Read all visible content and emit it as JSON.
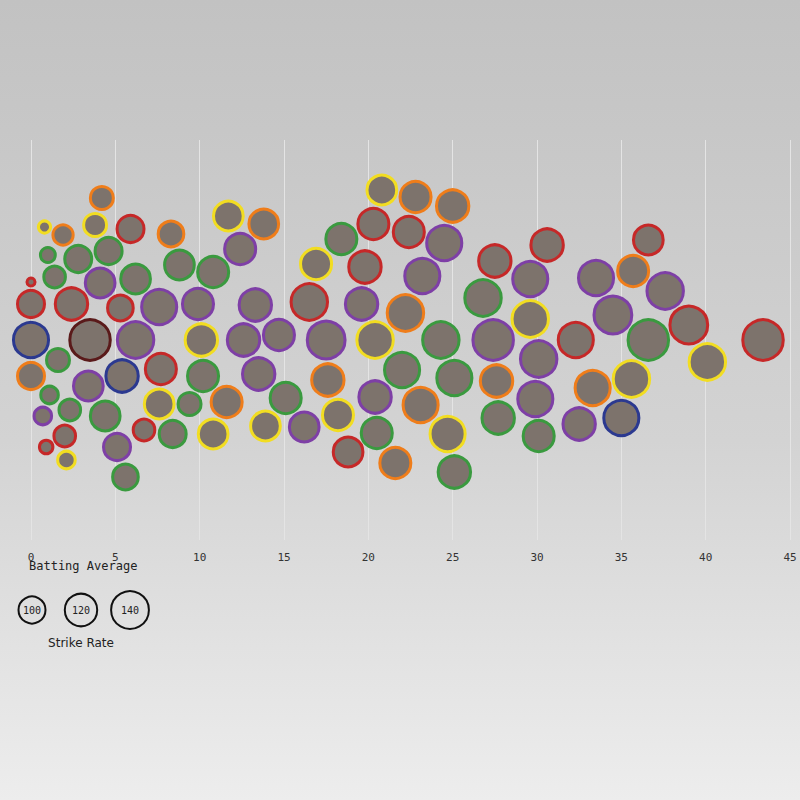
{
  "chart_data": {
    "type": "scatter",
    "x_label": "Batting Average",
    "size_label": "Strike Rate",
    "size_legend": [
      100,
      120,
      140
    ],
    "xlim": [
      0,
      45
    ],
    "xticks": [
      0,
      5,
      10,
      15,
      20,
      25,
      30,
      35,
      40,
      45
    ],
    "grid": true,
    "x": [
      0,
      0,
      0,
      0,
      0.8,
      0.9,
      1.0,
      1.1,
      0.7,
      1.9,
      2.8,
      2.3,
      1.6,
      2.1,
      1.4,
      2.0,
      3.5,
      2.4,
      3.4,
      3.8,
      4.1,
      4.2,
      4.4,
      4.6,
      5.3,
      5.1,
      5.4,
      5.6,
      5.9,
      6.2,
      6.2,
      6.7,
      7.6,
      7.6,
      7.7,
      8.3,
      8.4,
      8.8,
      9.4,
      9.9,
      10.1,
      10.2,
      10.8,
      10.8,
      11.6,
      11.7,
      12.6,
      12.4,
      13.3,
      13.5,
      13.9,
      13.8,
      14.7,
      15.1,
      16.5,
      16.9,
      16.2,
      17.6,
      17.5,
      18.2,
      18.4,
      18.8,
      19.6,
      20.4,
      20.4,
      19.8,
      20.5,
      20.3,
      20.8,
      21.6,
      22.0,
      22.4,
      22.2,
      22.8,
      23.2,
      23.1,
      24.3,
      24.5,
      24.7,
      25.1,
      25.1,
      25.0,
      26.8,
      27.6,
      27.4,
      27.7,
      27.5,
      29.9,
      29.6,
      29.6,
      30.1,
      30.6,
      30.1,
      32.3,
      32.5,
      33.3,
      33.5,
      34.5,
      35.0,
      35.6,
      35.7,
      36.6,
      36.6,
      37.6,
      39.0,
      40.1,
      43.4
    ],
    "sizes": [
      100,
      100,
      130,
      30,
      45,
      50,
      55,
      65,
      65,
      75,
      100,
      80,
      85,
      65,
      80,
      80,
      150,
      120,
      110,
      85,
      110,
      85,
      110,
      100,
      95,
      100,
      120,
      95,
      100,
      135,
      110,
      80,
      130,
      110,
      115,
      95,
      100,
      110,
      85,
      115,
      120,
      115,
      110,
      115,
      115,
      110,
      120,
      115,
      120,
      120,
      110,
      110,
      115,
      115,
      135,
      115,
      110,
      120,
      140,
      115,
      115,
      110,
      120,
      135,
      120,
      120,
      115,
      115,
      110,
      115,
      130,
      115,
      135,
      115,
      130,
      130,
      135,
      130,
      130,
      130,
      120,
      120,
      135,
      120,
      150,
      120,
      120,
      130,
      135,
      130,
      135,
      120,
      115,
      130,
      120,
      130,
      130,
      140,
      130,
      135,
      115,
      110,
      150,
      135,
      140,
      135,
      150
    ],
    "colors": [
      "#c62828",
      "#ef7d1a",
      "#2b3990",
      "#c62828",
      "#f2dd21",
      "#c62828",
      "#3a9a3f",
      "#3a9a3f",
      "#7e3fa6",
      "#ef7d1a",
      "#3a9a3f",
      "#3a9a3f",
      "#3a9a3f",
      "#f2dd21",
      "#3a9a3f",
      "#c62828",
      "#5a1a1a",
      "#c62828",
      "#7e3fa6",
      "#f2dd21",
      "#7e3fa6",
      "#ef7d1a",
      "#3a9a3f",
      "#3a9a3f",
      "#c62828",
      "#7e3fa6",
      "#2b3990",
      "#3a9a3f",
      "#c62828",
      "#7e3fa6",
      "#3a9a3f",
      "#c62828",
      "#7e3fa6",
      "#f2dd21",
      "#c62828",
      "#ef7d1a",
      "#3a9a3f",
      "#3a9a3f",
      "#3a9a3f",
      "#7e3fa6",
      "#f2dd21",
      "#3a9a3f",
      "#f2dd21",
      "#3a9a3f",
      "#ef7d1a",
      "#f2dd21",
      "#7e3fa6",
      "#7e3fa6",
      "#7e3fa6",
      "#7e3fa6",
      "#f2dd21",
      "#ef7d1a",
      "#7e3fa6",
      "#3a9a3f",
      "#c62828",
      "#f2dd21",
      "#7e3fa6",
      "#ef7d1a",
      "#7e3fa6",
      "#f2dd21",
      "#3a9a3f",
      "#c62828",
      "#7e3fa6",
      "#f2dd21",
      "#7e3fa6",
      "#c62828",
      "#3a9a3f",
      "#c62828",
      "#f2dd21",
      "#ef7d1a",
      "#3a9a3f",
      "#c62828",
      "#ef7d1a",
      "#ef7d1a",
      "#7e3fa6",
      "#ef7d1a",
      "#3a9a3f",
      "#7e3fa6",
      "#f2dd21",
      "#3a9a3f",
      "#3a9a3f",
      "#ef7d1a",
      "#3a9a3f",
      "#ef7d1a",
      "#7e3fa6",
      "#3a9a3f",
      "#c62828",
      "#7e3fa6",
      "#f2dd21",
      "#7e3fa6",
      "#7e3fa6",
      "#c62828",
      "#3a9a3f",
      "#c62828",
      "#7e3fa6",
      "#ef7d1a",
      "#7e3fa6",
      "#7e3fa6",
      "#2b3990",
      "#f2dd21",
      "#ef7d1a",
      "#c62828",
      "#3a9a3f",
      "#7e3fa6",
      "#c62828",
      "#f2dd21",
      "#c62828"
    ]
  }
}
